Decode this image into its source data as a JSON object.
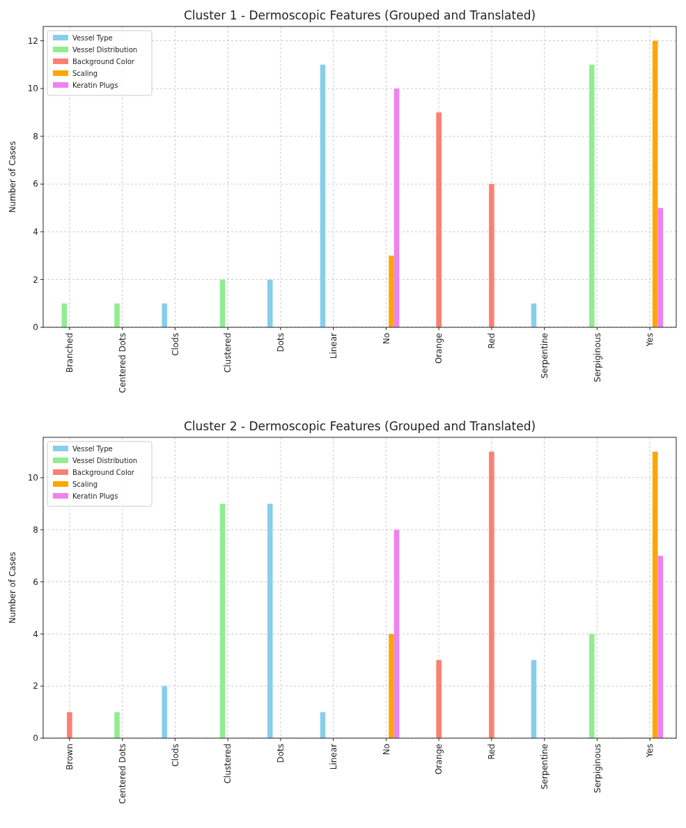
{
  "chart_data": [
    {
      "type": "bar",
      "title": "Cluster 1 - Dermoscopic Features (Grouped and Translated)",
      "ylabel": "Number of Cases",
      "categories": [
        "Branched",
        "Centered Dots",
        "Clods",
        "Clustered",
        "Dots",
        "Linear",
        "No",
        "Orange",
        "Red",
        "Serpentine",
        "Serpiginous",
        "Yes"
      ],
      "series": [
        {
          "name": "Vessel Type",
          "color": "#87ceeb",
          "values": [
            null,
            null,
            1,
            null,
            2,
            11,
            null,
            null,
            null,
            1,
            null,
            null
          ]
        },
        {
          "name": "Vessel Distribution",
          "color": "#90ee90",
          "values": [
            1,
            1,
            null,
            2,
            null,
            null,
            null,
            null,
            null,
            null,
            11,
            null
          ]
        },
        {
          "name": "Background Color",
          "color": "#fa8072",
          "values": [
            null,
            null,
            null,
            null,
            null,
            null,
            null,
            9,
            6,
            null,
            null,
            null
          ]
        },
        {
          "name": "Scaling",
          "color": "#ffa500",
          "values": [
            null,
            null,
            null,
            null,
            null,
            null,
            3,
            null,
            null,
            null,
            null,
            12
          ]
        },
        {
          "name": "Keratin Plugs",
          "color": "#ee82ee",
          "values": [
            null,
            null,
            null,
            null,
            null,
            null,
            10,
            null,
            null,
            null,
            null,
            5
          ]
        }
      ],
      "ylim": [
        0,
        12.6
      ],
      "yticks": [
        0,
        2,
        4,
        6,
        8,
        10,
        12
      ],
      "grid": true,
      "legend": "top left"
    },
    {
      "type": "bar",
      "title": "Cluster 2 - Dermoscopic Features (Grouped and Translated)",
      "ylabel": "Number of Cases",
      "categories": [
        "Brown",
        "Centered Dots",
        "Clods",
        "Clustered",
        "Dots",
        "Linear",
        "No",
        "Orange",
        "Red",
        "Serpentine",
        "Serpiginous",
        "Yes"
      ],
      "series": [
        {
          "name": "Vessel Type",
          "color": "#87ceeb",
          "values": [
            null,
            null,
            2,
            null,
            9,
            1,
            null,
            null,
            null,
            3,
            null,
            null
          ]
        },
        {
          "name": "Vessel Distribution",
          "color": "#90ee90",
          "values": [
            null,
            1,
            null,
            9,
            null,
            null,
            null,
            null,
            null,
            null,
            4,
            null
          ]
        },
        {
          "name": "Background Color",
          "color": "#fa8072",
          "values": [
            1,
            null,
            null,
            null,
            null,
            null,
            null,
            3,
            11,
            null,
            null,
            null
          ]
        },
        {
          "name": "Scaling",
          "color": "#ffa500",
          "values": [
            null,
            null,
            null,
            null,
            null,
            null,
            4,
            null,
            null,
            null,
            null,
            11
          ]
        },
        {
          "name": "Keratin Plugs",
          "color": "#ee82ee",
          "values": [
            null,
            null,
            null,
            null,
            null,
            null,
            8,
            null,
            null,
            null,
            null,
            7
          ]
        }
      ],
      "ylim": [
        0,
        11.55
      ],
      "yticks": [
        0,
        2,
        4,
        6,
        8,
        10
      ],
      "grid": true,
      "legend": "top left"
    }
  ]
}
